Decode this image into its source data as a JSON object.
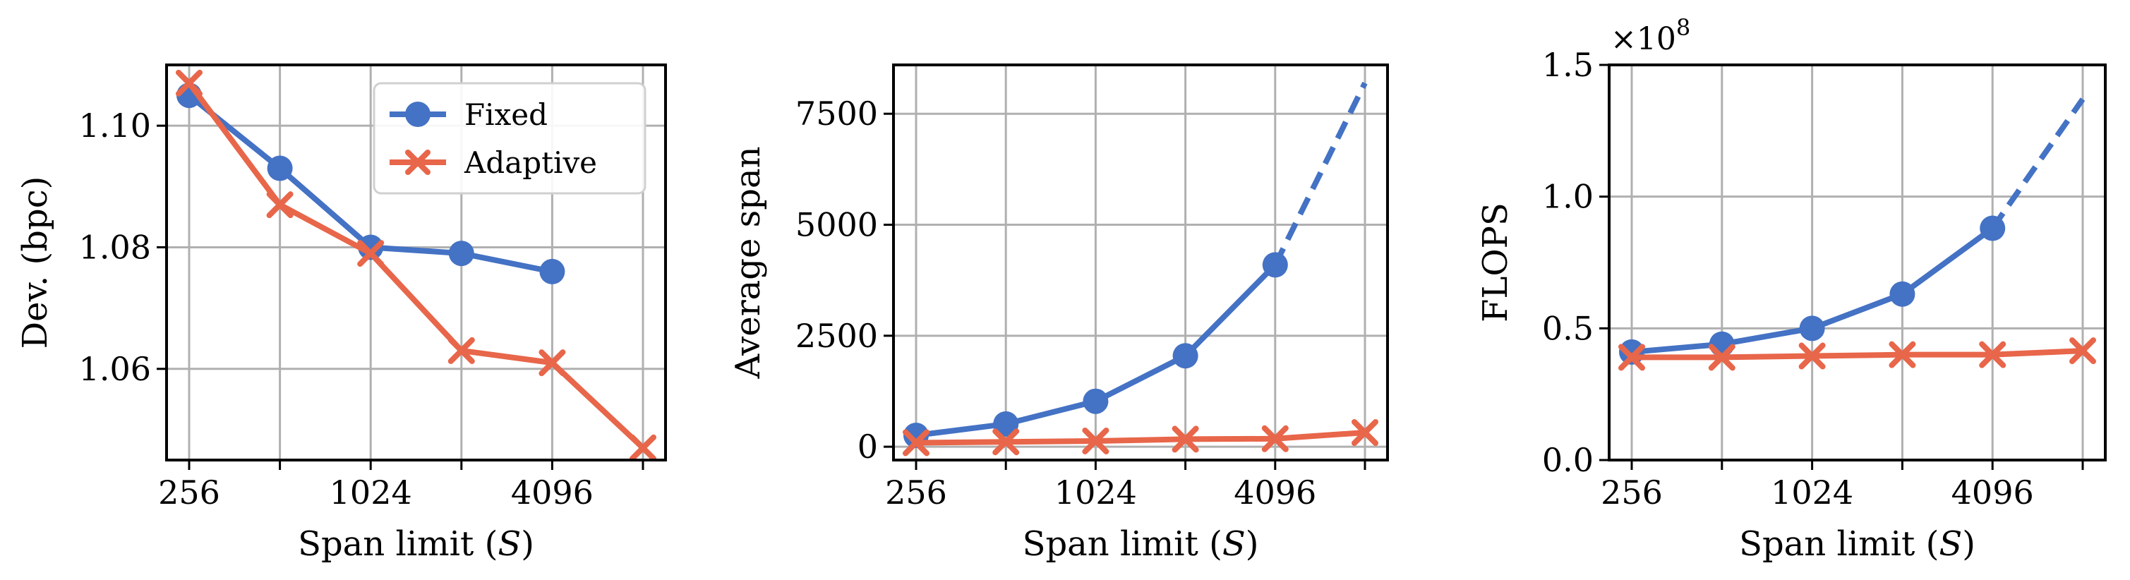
{
  "colors": {
    "fixed": "#4472C4",
    "adaptive": "#E8664A",
    "grid": "#b0b0b0"
  },
  "legend": {
    "fixed": "Fixed",
    "adaptive": "Adaptive",
    "placement": "upper-right (left panel)"
  },
  "chart_data": [
    {
      "type": "line",
      "x_scale": "log2",
      "x": [
        256,
        512,
        1024,
        2048,
        4096,
        8192
      ],
      "xticks": [
        256,
        512,
        1024,
        2048,
        4096,
        8192
      ],
      "xtick_labels": [
        "256",
        "",
        "1024",
        "",
        "4096",
        ""
      ],
      "xlabel": "Span limit (S)",
      "ylabel": "Dev. (bpc)",
      "ylim": [
        1.045,
        1.11
      ],
      "yticks": [
        1.06,
        1.08,
        1.1
      ],
      "ytick_labels": [
        "1.06",
        "1.08",
        "1.10"
      ],
      "grid": true,
      "legend": true,
      "series": [
        {
          "name": "Fixed",
          "marker": "circle",
          "values": [
            1.105,
            1.093,
            1.08,
            1.079,
            1.076,
            null
          ]
        },
        {
          "name": "Adaptive",
          "marker": "x",
          "values": [
            1.107,
            1.087,
            1.079,
            1.063,
            1.061,
            1.047
          ]
        }
      ]
    },
    {
      "type": "line",
      "x_scale": "log2",
      "x": [
        256,
        512,
        1024,
        2048,
        4096,
        8192
      ],
      "xticks": [
        256,
        512,
        1024,
        2048,
        4096,
        8192
      ],
      "xtick_labels": [
        "256",
        "",
        "1024",
        "",
        "4096",
        ""
      ],
      "xlabel": "Span limit (S)",
      "ylabel": "Average span",
      "ylim": [
        -300,
        8600
      ],
      "yticks": [
        0,
        2500,
        5000,
        7500
      ],
      "ytick_labels": [
        "0",
        "2500",
        "5000",
        "7500"
      ],
      "grid": true,
      "legend": false,
      "series": [
        {
          "name": "Fixed",
          "marker": "circle",
          "values": [
            256,
            512,
            1024,
            2048,
            4096,
            null
          ],
          "extrapolated_to": [
            4096,
            8192
          ],
          "extrapolated_values": [
            4096,
            8192
          ]
        },
        {
          "name": "Adaptive",
          "marker": "x",
          "values": [
            90,
            110,
            130,
            170,
            180,
            320
          ]
        }
      ]
    },
    {
      "type": "line",
      "x_scale": "log2",
      "x": [
        256,
        512,
        1024,
        2048,
        4096,
        8192
      ],
      "xticks": [
        256,
        512,
        1024,
        2048,
        4096,
        8192
      ],
      "xtick_labels": [
        "256",
        "",
        "1024",
        "",
        "4096",
        ""
      ],
      "xlabel": "Span limit (S)",
      "ylabel": "FLOPS",
      "sci_multiplier": "×10^8",
      "ylim": [
        0.0,
        1.5
      ],
      "yticks": [
        0.0,
        0.5,
        1.0,
        1.5
      ],
      "ytick_labels": [
        "0.0",
        "0.5",
        "1.0",
        "1.5"
      ],
      "grid": true,
      "legend": false,
      "series": [
        {
          "name": "Fixed",
          "marker": "circle",
          "values": [
            0.41,
            0.44,
            0.5,
            0.63,
            0.88,
            null
          ],
          "extrapolated_to": [
            4096,
            8192
          ],
          "extrapolated_values": [
            0.88,
            1.37
          ]
        },
        {
          "name": "Adaptive",
          "marker": "x",
          "values": [
            0.39,
            0.39,
            0.395,
            0.4,
            0.4,
            0.415
          ]
        }
      ]
    }
  ]
}
